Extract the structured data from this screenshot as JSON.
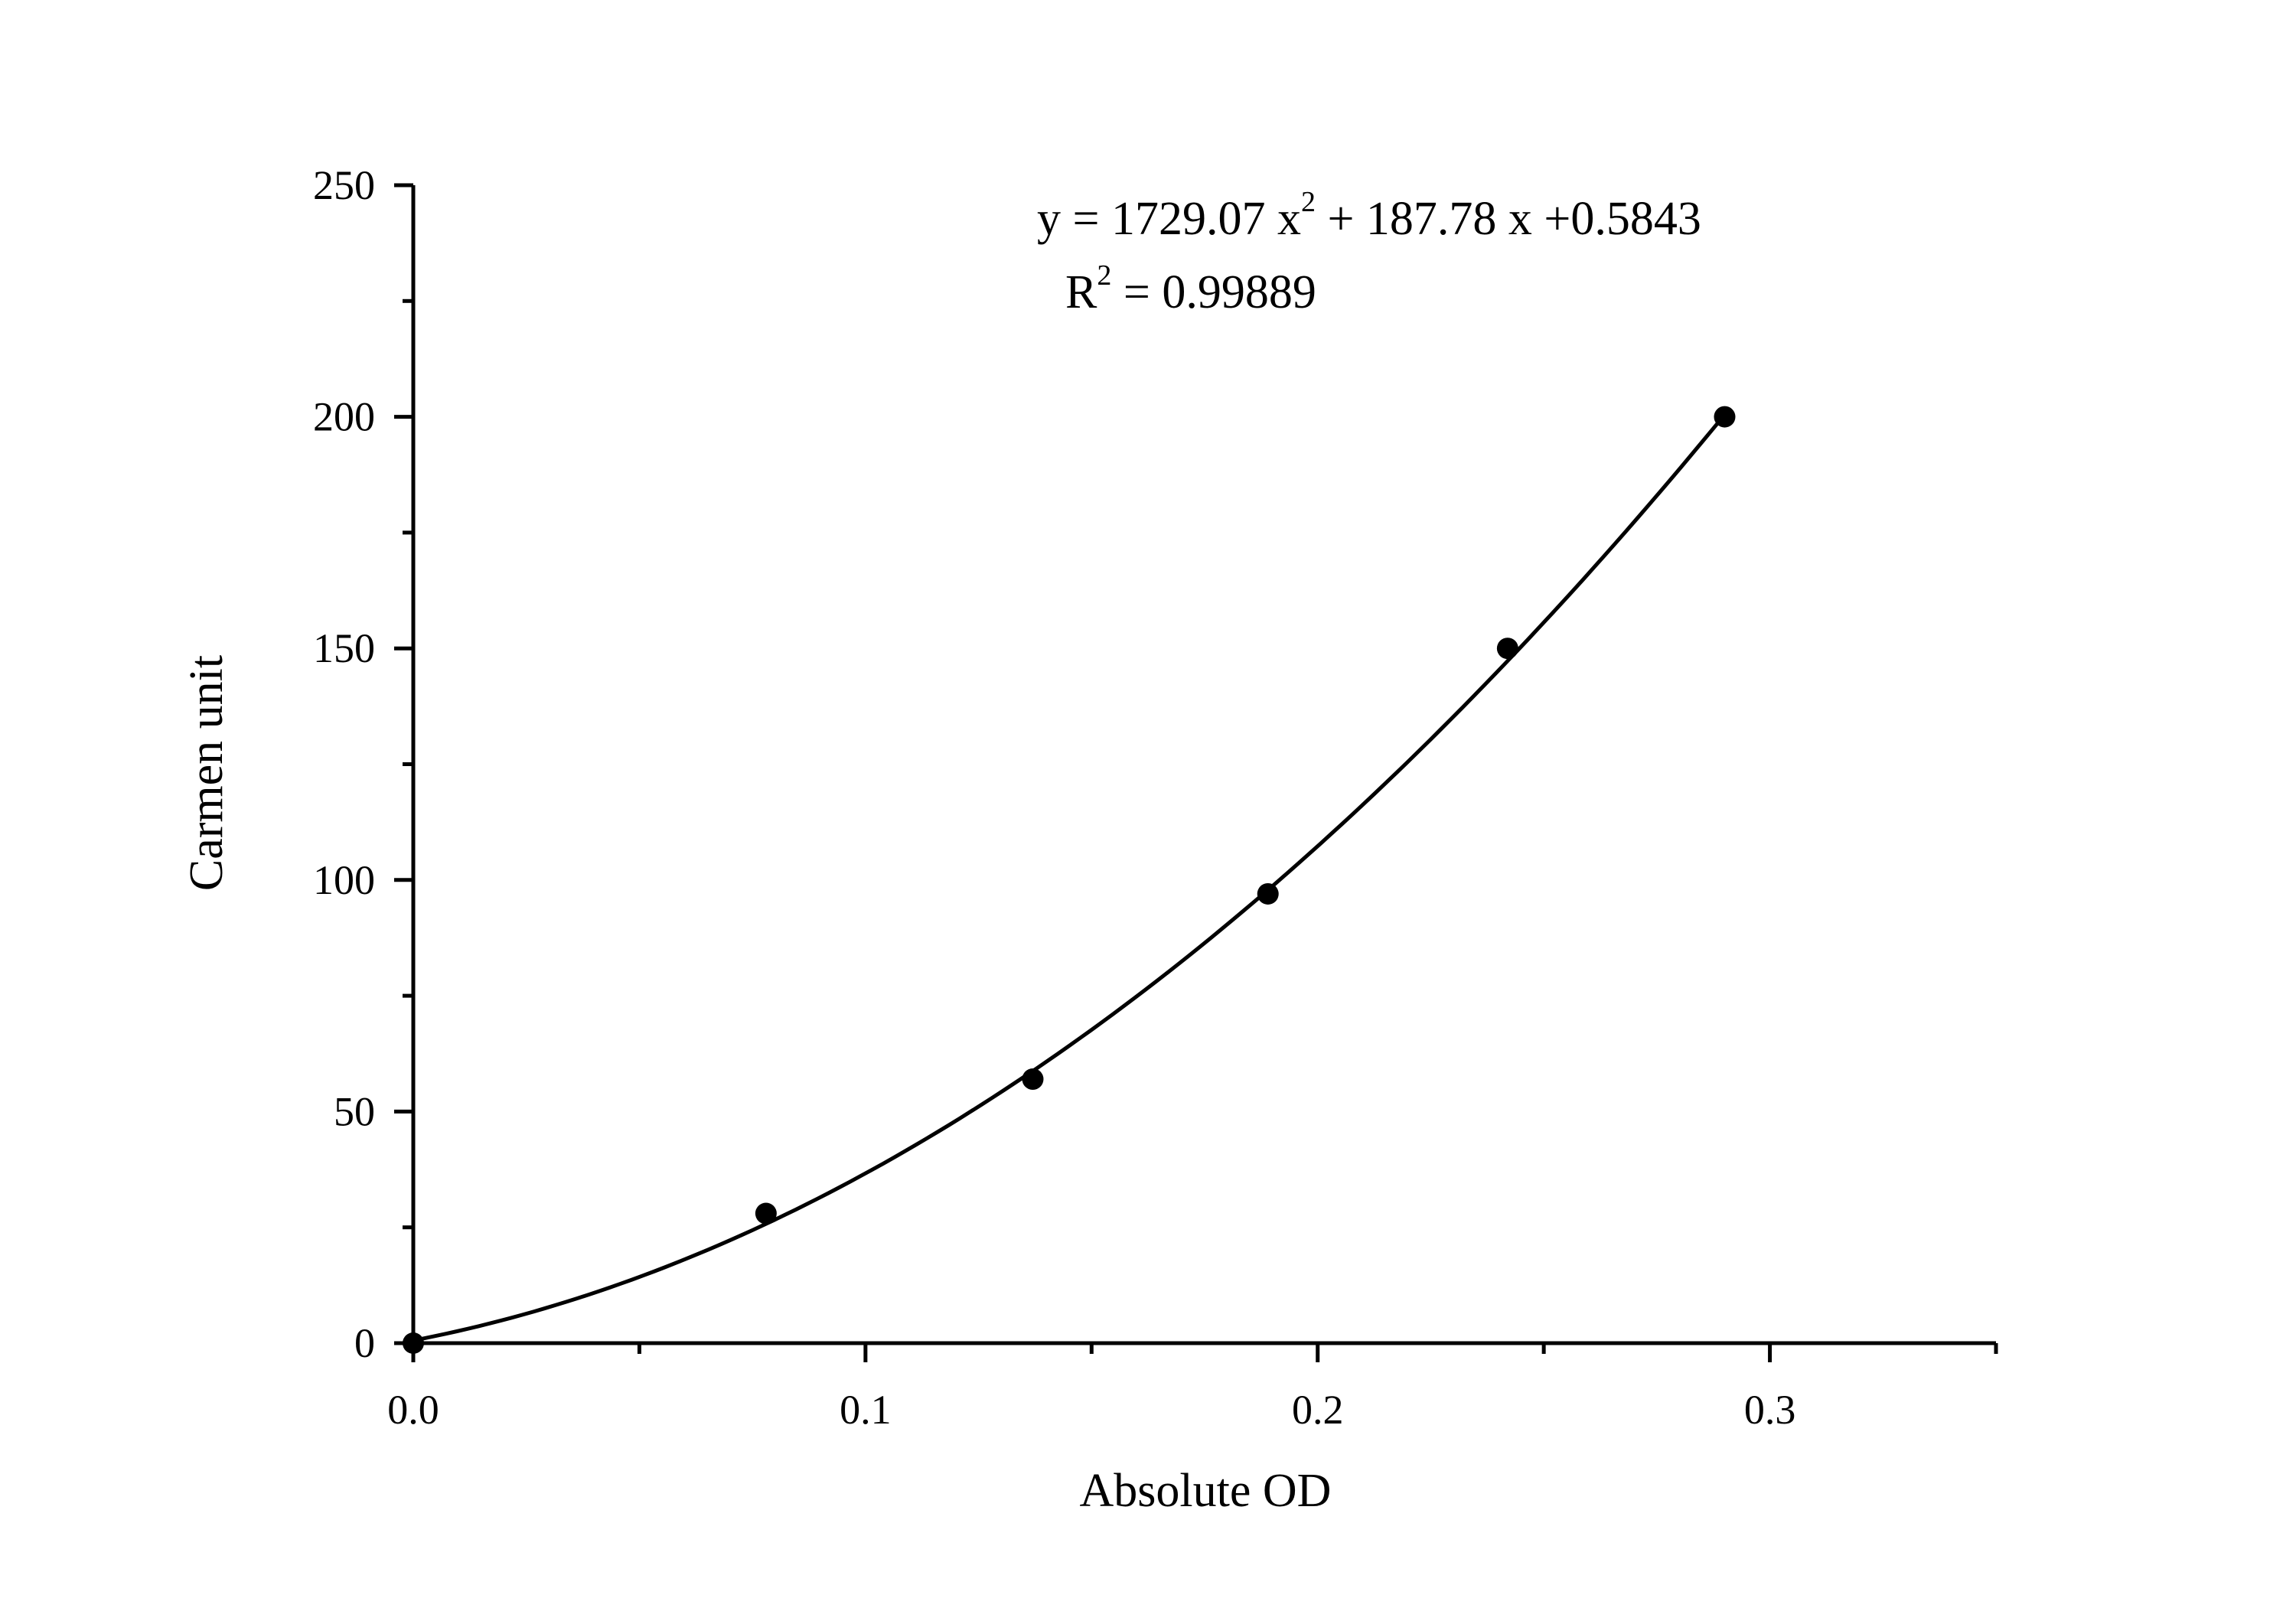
{
  "chart_data": {
    "type": "scatter",
    "xlabel": "Absolute OD",
    "ylabel": "Carmen unit",
    "xlim": [
      0,
      0.35
    ],
    "ylim": [
      0,
      250
    ],
    "x_ticks": [
      "0.0",
      "0.1",
      "0.2",
      "0.3"
    ],
    "y_ticks": [
      "0",
      "50",
      "100",
      "150",
      "200",
      "250"
    ],
    "grid": false,
    "series": [
      {
        "points": [
          {
            "x": 0.0,
            "y": 0
          },
          {
            "x": 0.078,
            "y": 28
          },
          {
            "x": 0.137,
            "y": 57
          },
          {
            "x": 0.189,
            "y": 97
          },
          {
            "x": 0.242,
            "y": 150
          },
          {
            "x": 0.29,
            "y": 200
          }
        ],
        "marker": "filled-circle",
        "color": "#000000"
      }
    ],
    "fit": {
      "type": "polynomial-2",
      "coefficients": {
        "a": 1729.07,
        "b": 187.78,
        "c": 0.5843
      },
      "x_range": [
        0,
        0.29
      ],
      "color": "#000000"
    },
    "annotations": {
      "equation": {
        "prefix": "y = 1729.07 x",
        "sup1": "2",
        "suffix": " + 187.78 x +0.5843"
      },
      "r_squared": {
        "prefix": "R",
        "sup": "2",
        "suffix": " = 0.99889"
      }
    }
  }
}
